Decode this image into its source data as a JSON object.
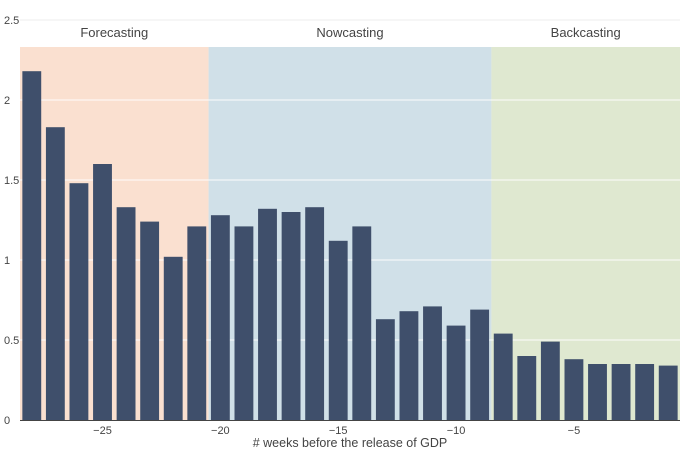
{
  "chart_data": {
    "type": "bar",
    "xlabel": "# weeks before the release of GDP",
    "ylabel": "",
    "title": "",
    "xlim": [
      -28.5,
      -0.5
    ],
    "ylim": [
      0,
      2.5
    ],
    "grid": true,
    "legend": "none",
    "x": [
      -28,
      -27,
      -26,
      -25,
      -24,
      -23,
      -22,
      -21,
      -20,
      -19,
      -18,
      -17,
      -16,
      -15,
      -14,
      -13,
      -12,
      -11,
      -10,
      -9,
      -8,
      -7,
      -6,
      -5,
      -4,
      -3,
      -2,
      -1
    ],
    "values": [
      2.18,
      1.83,
      1.48,
      1.6,
      1.33,
      1.24,
      1.02,
      1.21,
      1.28,
      1.21,
      1.32,
      1.3,
      1.33,
      1.12,
      1.21,
      0.63,
      0.68,
      0.71,
      0.59,
      0.69,
      0.54,
      0.4,
      0.49,
      0.38,
      0.35,
      0.35,
      0.35,
      0.34
    ],
    "xticks": [
      -25,
      -20,
      -15,
      -10,
      -5
    ],
    "xtick_labels": [
      "−25",
      "−20",
      "−15",
      "−10",
      "−5"
    ],
    "yticks": [
      0,
      0.5,
      1,
      1.5,
      2,
      2.5
    ],
    "ytick_labels": [
      "0",
      "0.5",
      "1",
      "1.5",
      "2",
      "2.5"
    ],
    "regions": [
      {
        "label": "Forecasting",
        "x0": -28.5,
        "x1": -20.5,
        "color": "#fae0d0"
      },
      {
        "label": "Nowcasting",
        "x0": -20.5,
        "x1": -8.5,
        "color": "#d0e0e8"
      },
      {
        "label": "Backcasting",
        "x0": -8.5,
        "x1": -0.5,
        "color": "#dfe8d0"
      }
    ],
    "bar_color": "#3f4f6b"
  }
}
